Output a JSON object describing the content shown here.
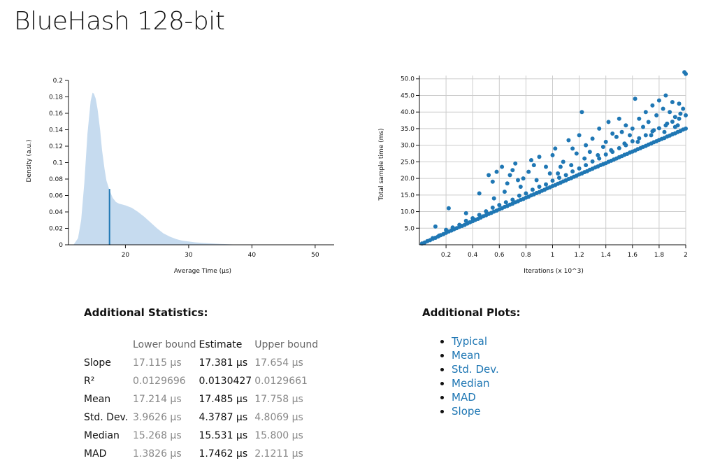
{
  "page": {
    "title": "BlueHash 128-bit"
  },
  "pdf_chart": {
    "type": "area",
    "xlabel": "Average Time (µs)",
    "ylabel": "Density (a.u.)",
    "xlim": [
      11,
      53
    ],
    "ylim": [
      0,
      0.2
    ],
    "xticks": [
      "20",
      "30",
      "40",
      "50"
    ],
    "yticks": [
      "0",
      "0.02",
      "0.04",
      "0.06",
      "0.08",
      "0.1",
      "0.12",
      "0.14",
      "0.16",
      "0.18",
      "0.2"
    ],
    "fill_color": "#c6dbef",
    "mean_line_color": "#1f77b4",
    "mean_value": 17.485,
    "mean_density": 0.068,
    "x": [
      11.8,
      12.5,
      13.0,
      13.5,
      14.0,
      14.5,
      14.8,
      15.0,
      15.3,
      15.6,
      16.0,
      16.3,
      16.7,
      17.0,
      17.5,
      18.0,
      18.5,
      19.0,
      19.5,
      20.0,
      21.0,
      22.0,
      23.0,
      24.0,
      25.0,
      26.0,
      27.0,
      28.0,
      29.0,
      30.0,
      31.0,
      32.0,
      33.0,
      34.0,
      35.0,
      36.0,
      37.0,
      38.0
    ],
    "y": [
      0.0,
      0.008,
      0.03,
      0.075,
      0.135,
      0.175,
      0.185,
      0.184,
      0.178,
      0.165,
      0.14,
      0.115,
      0.092,
      0.078,
      0.066,
      0.057,
      0.052,
      0.05,
      0.049,
      0.048,
      0.045,
      0.04,
      0.034,
      0.027,
      0.02,
      0.014,
      0.01,
      0.007,
      0.005,
      0.004,
      0.003,
      0.0025,
      0.002,
      0.0015,
      0.001,
      0.0008,
      0.0004,
      0.0
    ]
  },
  "regression_chart": {
    "type": "scatter",
    "xlabel": "Iterations (x 10^3)",
    "ylabel": "Total sample time (ms)",
    "xlim": [
      0,
      2
    ],
    "ylim": [
      0,
      51
    ],
    "xticks": [
      "0.2",
      "0.4",
      "0.6",
      "0.8",
      "1",
      "1.2",
      "1.4",
      "1.6",
      "1.8",
      "2"
    ],
    "yticks": [
      "5.0",
      "10.0",
      "15.0",
      "20.0",
      "25.0",
      "30.0",
      "35.0",
      "40.0",
      "45.0",
      "50.0"
    ],
    "grid": true,
    "point_color": "#1f77b4",
    "slope_ms_per_kiter": 17.381,
    "points": [
      [
        0.02,
        0.4
      ],
      [
        0.04,
        0.7
      ],
      [
        0.06,
        1.1
      ],
      [
        0.08,
        1.4
      ],
      [
        0.1,
        1.8
      ],
      [
        0.12,
        2.1
      ],
      [
        0.14,
        2.5
      ],
      [
        0.16,
        2.9
      ],
      [
        0.18,
        3.2
      ],
      [
        0.2,
        3.6
      ],
      [
        0.22,
        4.0
      ],
      [
        0.24,
        4.3
      ],
      [
        0.26,
        4.7
      ],
      [
        0.28,
        5.0
      ],
      [
        0.3,
        5.4
      ],
      [
        0.32,
        5.7
      ],
      [
        0.34,
        6.0
      ],
      [
        0.36,
        6.4
      ],
      [
        0.38,
        6.8
      ],
      [
        0.4,
        7.1
      ],
      [
        0.42,
        7.5
      ],
      [
        0.44,
        7.8
      ],
      [
        0.46,
        8.2
      ],
      [
        0.48,
        8.6
      ],
      [
        0.5,
        8.9
      ],
      [
        0.52,
        9.3
      ],
      [
        0.54,
        9.6
      ],
      [
        0.56,
        10.0
      ],
      [
        0.58,
        10.3
      ],
      [
        0.6,
        10.7
      ],
      [
        0.62,
        11.0
      ],
      [
        0.64,
        11.4
      ],
      [
        0.66,
        11.7
      ],
      [
        0.68,
        12.1
      ],
      [
        0.7,
        12.4
      ],
      [
        0.72,
        12.8
      ],
      [
        0.74,
        13.1
      ],
      [
        0.76,
        13.5
      ],
      [
        0.78,
        13.8
      ],
      [
        0.8,
        14.2
      ],
      [
        0.82,
        14.5
      ],
      [
        0.84,
        14.9
      ],
      [
        0.86,
        15.2
      ],
      [
        0.88,
        15.6
      ],
      [
        0.9,
        15.9
      ],
      [
        0.92,
        16.3
      ],
      [
        0.94,
        16.6
      ],
      [
        0.96,
        17.0
      ],
      [
        0.98,
        17.3
      ],
      [
        1.0,
        17.7
      ],
      [
        1.02,
        18.0
      ],
      [
        1.04,
        18.4
      ],
      [
        1.06,
        18.7
      ],
      [
        1.08,
        19.1
      ],
      [
        1.1,
        19.4
      ],
      [
        1.12,
        19.8
      ],
      [
        1.14,
        20.1
      ],
      [
        1.16,
        20.5
      ],
      [
        1.18,
        20.8
      ],
      [
        1.2,
        21.2
      ],
      [
        1.22,
        21.5
      ],
      [
        1.24,
        21.9
      ],
      [
        1.26,
        22.2
      ],
      [
        1.28,
        22.6
      ],
      [
        1.3,
        22.9
      ],
      [
        1.32,
        23.3
      ],
      [
        1.34,
        23.6
      ],
      [
        1.36,
        24.0
      ],
      [
        1.38,
        24.3
      ],
      [
        1.4,
        24.6
      ],
      [
        1.42,
        25.0
      ],
      [
        1.44,
        25.3
      ],
      [
        1.46,
        25.7
      ],
      [
        1.48,
        26.0
      ],
      [
        1.5,
        26.4
      ],
      [
        1.52,
        26.7
      ],
      [
        1.54,
        27.1
      ],
      [
        1.56,
        27.4
      ],
      [
        1.58,
        27.8
      ],
      [
        1.6,
        28.1
      ],
      [
        1.62,
        28.4
      ],
      [
        1.64,
        28.8
      ],
      [
        1.66,
        29.1
      ],
      [
        1.68,
        29.5
      ],
      [
        1.7,
        29.8
      ],
      [
        1.72,
        30.2
      ],
      [
        1.74,
        30.5
      ],
      [
        1.76,
        30.9
      ],
      [
        1.78,
        31.2
      ],
      [
        1.8,
        31.6
      ],
      [
        1.82,
        31.9
      ],
      [
        1.84,
        32.2
      ],
      [
        1.86,
        32.6
      ],
      [
        1.88,
        32.9
      ],
      [
        1.9,
        33.3
      ],
      [
        1.92,
        33.6
      ],
      [
        1.94,
        34.0
      ],
      [
        1.96,
        34.3
      ],
      [
        1.98,
        34.7
      ],
      [
        2.0,
        35.0
      ],
      [
        0.1,
        2.0
      ],
      [
        0.15,
        2.8
      ],
      [
        0.2,
        4.5
      ],
      [
        0.25,
        5.2
      ],
      [
        0.3,
        6.0
      ],
      [
        0.35,
        7.2
      ],
      [
        0.4,
        8.0
      ],
      [
        0.45,
        9.0
      ],
      [
        0.5,
        10.1
      ],
      [
        0.55,
        11.2
      ],
      [
        0.6,
        12.0
      ],
      [
        0.65,
        12.8
      ],
      [
        0.7,
        13.6
      ],
      [
        0.75,
        14.8
      ],
      [
        0.8,
        15.5
      ],
      [
        0.85,
        16.6
      ],
      [
        0.9,
        17.5
      ],
      [
        0.95,
        18.2
      ],
      [
        1.0,
        19.3
      ],
      [
        1.05,
        20.2
      ],
      [
        1.1,
        21.0
      ],
      [
        1.15,
        22.1
      ],
      [
        1.2,
        23.0
      ],
      [
        1.25,
        24.0
      ],
      [
        1.3,
        25.1
      ],
      [
        1.35,
        26.0
      ],
      [
        1.4,
        27.2
      ],
      [
        1.45,
        28.0
      ],
      [
        1.5,
        29.1
      ],
      [
        1.55,
        30.0
      ],
      [
        1.6,
        31.2
      ],
      [
        1.65,
        32.1
      ],
      [
        1.7,
        33.0
      ],
      [
        1.75,
        34.2
      ],
      [
        1.8,
        35.1
      ],
      [
        1.85,
        36.0
      ],
      [
        1.9,
        37.1
      ],
      [
        1.95,
        38.0
      ],
      [
        2.0,
        39.0
      ],
      [
        0.12,
        5.5
      ],
      [
        0.22,
        11.0
      ],
      [
        0.35,
        9.5
      ],
      [
        0.45,
        15.5
      ],
      [
        0.52,
        21.0
      ],
      [
        0.55,
        19.0
      ],
      [
        0.58,
        22.0
      ],
      [
        0.62,
        23.5
      ],
      [
        0.66,
        18.5
      ],
      [
        0.7,
        22.5
      ],
      [
        0.72,
        24.5
      ],
      [
        0.78,
        20.0
      ],
      [
        0.82,
        22.0
      ],
      [
        0.86,
        24.0
      ],
      [
        0.9,
        26.5
      ],
      [
        0.95,
        23.5
      ],
      [
        1.0,
        27.0
      ],
      [
        1.02,
        29.0
      ],
      [
        1.08,
        25.0
      ],
      [
        1.12,
        31.5
      ],
      [
        1.15,
        29.0
      ],
      [
        1.2,
        33.0
      ],
      [
        1.22,
        40.0
      ],
      [
        1.25,
        30.0
      ],
      [
        1.3,
        32.0
      ],
      [
        1.35,
        35.0
      ],
      [
        1.38,
        29.5
      ],
      [
        1.42,
        37.0
      ],
      [
        1.45,
        33.5
      ],
      [
        1.5,
        38.0
      ],
      [
        1.52,
        34.0
      ],
      [
        1.55,
        36.0
      ],
      [
        1.6,
        35.0
      ],
      [
        1.62,
        44.0
      ],
      [
        1.65,
        38.0
      ],
      [
        1.7,
        40.0
      ],
      [
        1.72,
        37.0
      ],
      [
        1.75,
        42.0
      ],
      [
        1.78,
        39.0
      ],
      [
        1.8,
        43.5
      ],
      [
        1.83,
        41.0
      ],
      [
        1.85,
        45.0
      ],
      [
        1.88,
        40.0
      ],
      [
        1.9,
        43.0
      ],
      [
        1.92,
        38.5
      ],
      [
        1.95,
        42.5
      ],
      [
        1.98,
        41.0
      ],
      [
        1.99,
        52.0
      ],
      [
        2.0,
        51.5
      ],
      [
        1.96,
        39.5
      ],
      [
        0.68,
        21.0
      ],
      [
        0.74,
        19.5
      ],
      [
        0.84,
        25.5
      ],
      [
        0.98,
        21.5
      ],
      [
        1.06,
        23.5
      ],
      [
        1.18,
        27.5
      ],
      [
        1.28,
        28.0
      ],
      [
        1.4,
        31.0
      ],
      [
        1.48,
        32.5
      ],
      [
        1.58,
        33.0
      ],
      [
        1.68,
        35.5
      ],
      [
        1.76,
        34.5
      ],
      [
        1.86,
        36.5
      ],
      [
        1.94,
        36.0
      ],
      [
        0.56,
        14.0
      ],
      [
        0.64,
        16.0
      ],
      [
        0.76,
        17.5
      ],
      [
        0.88,
        19.5
      ],
      [
        1.04,
        21.5
      ],
      [
        1.14,
        24.0
      ],
      [
        1.24,
        26.0
      ],
      [
        1.34,
        27.0
      ],
      [
        1.44,
        28.5
      ],
      [
        1.54,
        30.5
      ],
      [
        1.64,
        31.0
      ],
      [
        1.74,
        33.0
      ],
      [
        1.84,
        34.0
      ],
      [
        1.92,
        35.5
      ]
    ]
  },
  "stats": {
    "heading": "Additional Statistics:",
    "columns": [
      "",
      "Lower bound",
      "Estimate",
      "Upper bound"
    ],
    "rows": [
      {
        "name": "Slope",
        "lower": "17.115 µs",
        "estimate": "17.381 µs",
        "upper": "17.654 µs"
      },
      {
        "name": "R²",
        "lower": "0.0129696",
        "estimate": "0.0130427",
        "upper": "0.0129661"
      },
      {
        "name": "Mean",
        "lower": "17.214 µs",
        "estimate": "17.485 µs",
        "upper": "17.758 µs"
      },
      {
        "name": "Std. Dev.",
        "lower": "3.9626 µs",
        "estimate": "4.3787 µs",
        "upper": "4.8069 µs"
      },
      {
        "name": "Median",
        "lower": "15.268 µs",
        "estimate": "15.531 µs",
        "upper": "15.800 µs"
      },
      {
        "name": "MAD",
        "lower": "1.3826 µs",
        "estimate": "1.7462 µs",
        "upper": "2.1211 µs"
      }
    ]
  },
  "plots": {
    "heading": "Additional Plots:",
    "links": [
      "Typical",
      "Mean",
      "Std. Dev.",
      "Median",
      "MAD",
      "Slope"
    ],
    "link_color": "#1f77b4"
  }
}
